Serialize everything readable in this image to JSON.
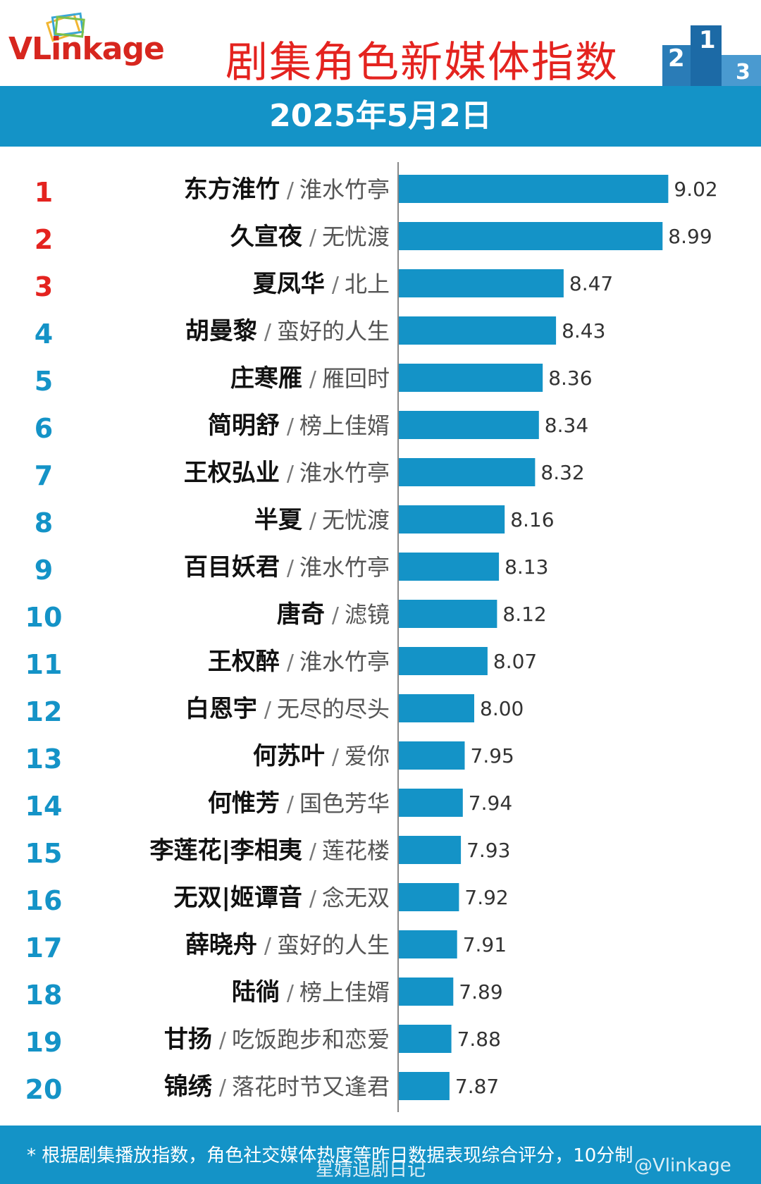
{
  "header": {
    "logo_text": "VLinkage",
    "title": "剧集角色新媒体指数",
    "podium_digits": [
      "2",
      "1",
      "3"
    ]
  },
  "date_label": "2025年5月2日",
  "colors": {
    "bar": "#1493c7",
    "rank_top": "#e4231f",
    "rank_rest": "#1493c7",
    "band": "#1493c7"
  },
  "chart_data": {
    "type": "bar",
    "orientation": "horizontal",
    "rows": [
      {
        "rank": "1",
        "name": "东方淮竹",
        "show": "淮水竹亭",
        "value": 9.02
      },
      {
        "rank": "2",
        "name": "久宣夜",
        "show": "无忧渡",
        "value": 8.99
      },
      {
        "rank": "3",
        "name": "夏凤华",
        "show": "北上",
        "value": 8.47
      },
      {
        "rank": "4",
        "name": "胡曼黎",
        "show": "蛮好的人生",
        "value": 8.43
      },
      {
        "rank": "5",
        "name": "庄寒雁",
        "show": "雁回时",
        "value": 8.36
      },
      {
        "rank": "6",
        "name": "简明舒",
        "show": "榜上佳婿",
        "value": 8.34
      },
      {
        "rank": "7",
        "name": "王权弘业",
        "show": "淮水竹亭",
        "value": 8.32
      },
      {
        "rank": "8",
        "name": "半夏",
        "show": "无忧渡",
        "value": 8.16
      },
      {
        "rank": "9",
        "name": "百目妖君",
        "show": "淮水竹亭",
        "value": 8.13
      },
      {
        "rank": "10",
        "name": "唐奇",
        "show": "滤镜",
        "value": 8.12
      },
      {
        "rank": "11",
        "name": "王权醉",
        "show": "淮水竹亭",
        "value": 8.07
      },
      {
        "rank": "12",
        "name": "白恩宇",
        "show": "无尽的尽头",
        "value": 8.0
      },
      {
        "rank": "13",
        "name": "何苏叶",
        "show": "爱你",
        "value": 7.95
      },
      {
        "rank": "14",
        "name": "何惟芳",
        "show": "国色芳华",
        "value": 7.94
      },
      {
        "rank": "15",
        "name": "李莲花|李相夷",
        "show": "莲花楼",
        "value": 7.93
      },
      {
        "rank": "16",
        "name": "无双|姬谭音",
        "show": "念无双",
        "value": 7.92
      },
      {
        "rank": "17",
        "name": "薛晓舟",
        "show": "蛮好的人生",
        "value": 7.91
      },
      {
        "rank": "18",
        "name": "陆徜",
        "show": "榜上佳婿",
        "value": 7.89
      },
      {
        "rank": "19",
        "name": "甘扬",
        "show": "吃饭跑步和恋爱",
        "value": 7.88
      },
      {
        "rank": "20",
        "name": "锦绣",
        "show": "落花时节又逢君",
        "value": 7.87
      }
    ],
    "value_labels": [
      "9.02",
      "8.99",
      "8.47",
      "8.43",
      "8.36",
      "8.34",
      "8.32",
      "8.16",
      "8.13",
      "8.12",
      "8.07",
      "8.00",
      "7.95",
      "7.94",
      "7.93",
      "7.92",
      "7.91",
      "7.89",
      "7.88",
      "7.87"
    ]
  },
  "footer": {
    "note": "* 根据剧集播放指数，角色社交媒体热度等昨日数据表现综合评分，10分制",
    "watermark_left": "星婧追剧日记",
    "watermark_right": "@Vlinkage"
  }
}
